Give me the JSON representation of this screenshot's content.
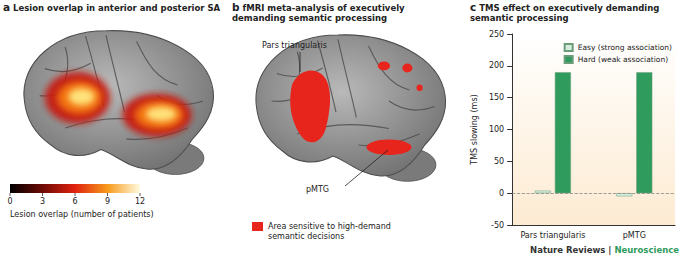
{
  "figure": {
    "panels": [
      {
        "letter": "a",
        "title": "Lesion overlap in anterior and posterior SA",
        "colorbar": {
          "range": [
            0,
            12
          ],
          "ticks": [
            0,
            3,
            6,
            9,
            12
          ],
          "label": "Lesion overlap (number of patients)"
        }
      },
      {
        "letter": "b",
        "title": "fMRI meta-analysis of executively demanding semantic processing",
        "region_labels": [
          "Pars triangularis",
          "pMTG"
        ],
        "legend": {
          "color": "#e8251c",
          "label": "Area sensitive to high-demand semantic decisions"
        }
      }
    ],
    "footer": [
      "Nature Reviews",
      "|",
      "Neuroscience"
    ]
  },
  "chart_data": {
    "type": "bar",
    "letter": "c",
    "title": "TMS effect on executively demanding semantic processing",
    "y_label": "TMS slowing (ms)",
    "categories": [
      "Pars triangularis",
      "pMTG"
    ],
    "series": [
      {
        "name": "Easy (strong association)",
        "color": "#d6eedd",
        "values": [
          4,
          -5
        ]
      },
      {
        "name": "Hard (weak association)",
        "color": "#2f9b5c",
        "values": [
          190,
          190
        ]
      }
    ],
    "ylim": [
      -50,
      250
    ],
    "yticks": [
      -50,
      0,
      50,
      100,
      150,
      200,
      250
    ],
    "baseline": 0,
    "legend": "top-right",
    "grid": false
  }
}
